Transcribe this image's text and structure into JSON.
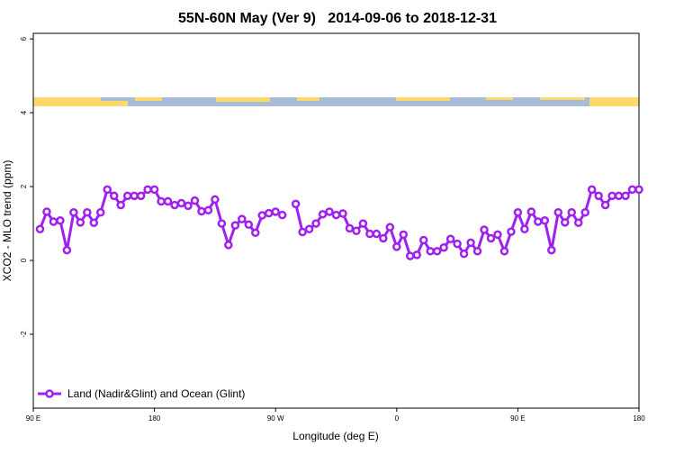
{
  "chart_data": {
    "type": "line",
    "title": "55N-60N May (Ver 9)   2014-09-06 to 2018-12-31",
    "xlabel": "Longitude (deg E)",
    "ylabel": "XCO2 - MLO trend (ppm)",
    "xlim": [
      90,
      540
    ],
    "ylim": [
      -4,
      6.15
    ],
    "xticks": [
      {
        "value": 90,
        "label": "90 E"
      },
      {
        "value": 180,
        "label": "180"
      },
      {
        "value": 270,
        "label": "90 W"
      },
      {
        "value": 360,
        "label": "0"
      },
      {
        "value": 450,
        "label": "90 E"
      },
      {
        "value": 540,
        "label": "180"
      }
    ],
    "yticks": [
      -2,
      0,
      2,
      4,
      6
    ],
    "legend": "bottom-left",
    "x": [
      95,
      100,
      105,
      110,
      115,
      120,
      125,
      130,
      135,
      140,
      145,
      150,
      155,
      160,
      165,
      170,
      175,
      180,
      185,
      190,
      195,
      200,
      205,
      210,
      215,
      220,
      225,
      230,
      235,
      240,
      245,
      250,
      255,
      260,
      265,
      270,
      275,
      280,
      285,
      290,
      295,
      300,
      305,
      310,
      315,
      320,
      325,
      330,
      335,
      340,
      345,
      350,
      355,
      360,
      365,
      370,
      375,
      380,
      385,
      390,
      395,
      400,
      405,
      410,
      415,
      420,
      425,
      430,
      435,
      440,
      445,
      450,
      455,
      460,
      465,
      470,
      475,
      480,
      485,
      490,
      495,
      500,
      505,
      510,
      515,
      520,
      525,
      530,
      535,
      540
    ],
    "series": [
      {
        "name": "Land (Nadir&Glint) and Ocean (Glint)",
        "color": "#a020f0",
        "values": [
          0.85,
          1.32,
          1.05,
          1.08,
          0.28,
          1.3,
          1.03,
          1.3,
          1.02,
          1.3,
          1.92,
          1.75,
          1.5,
          1.75,
          1.75,
          1.75,
          1.92,
          1.92,
          1.6,
          1.6,
          1.5,
          1.55,
          1.48,
          1.62,
          1.33,
          1.36,
          1.65,
          1.0,
          0.42,
          0.95,
          1.12,
          0.97,
          0.75,
          1.22,
          1.28,
          1.32,
          1.23,
          null,
          1.53,
          0.77,
          0.85,
          1.0,
          1.25,
          1.32,
          1.23,
          1.27,
          0.87,
          0.8,
          1.0,
          0.72,
          0.72,
          0.6,
          0.9,
          0.37,
          0.7,
          0.12,
          0.15,
          0.55,
          0.25,
          0.25,
          0.35,
          0.58,
          0.45,
          0.18,
          0.48,
          0.25,
          0.83,
          0.6,
          0.7,
          0.25,
          0.78,
          1.3,
          0.85,
          1.32,
          1.05,
          1.08,
          0.28,
          1.3,
          1.03,
          1.3,
          1.02,
          1.3,
          1.92,
          1.75,
          1.5,
          1.75,
          1.75,
          1.75,
          1.92,
          1.92
        ]
      }
    ]
  }
}
